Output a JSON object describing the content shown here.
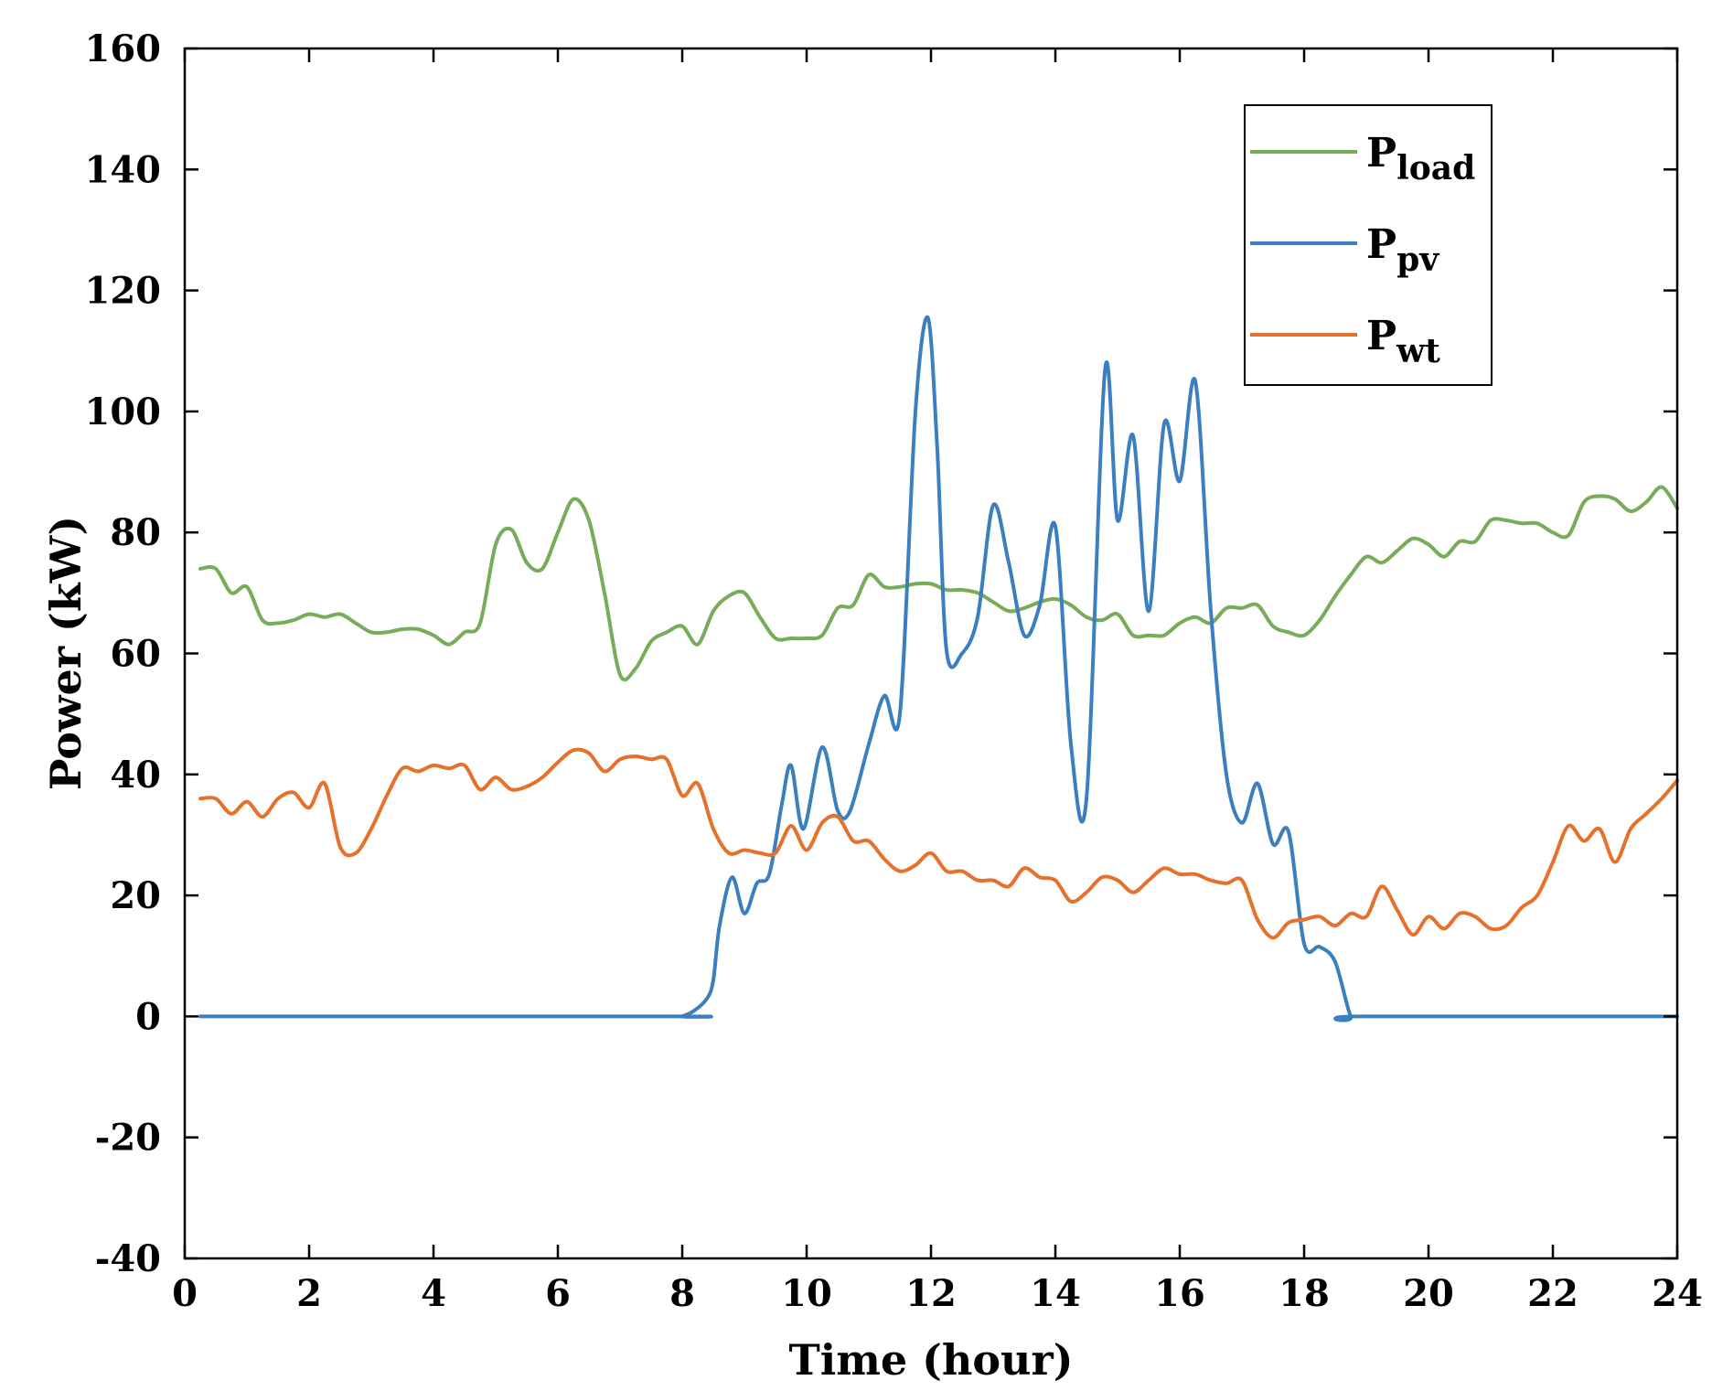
{
  "chart_data": {
    "type": "line",
    "title": "",
    "xlabel": "Time (hour)",
    "ylabel": "Power (kW)",
    "xlim": [
      0,
      24
    ],
    "ylim": [
      -40,
      160
    ],
    "x_ticks": [
      0,
      2,
      4,
      6,
      8,
      10,
      12,
      14,
      16,
      18,
      20,
      22,
      24
    ],
    "y_ticks": [
      -40,
      -20,
      0,
      20,
      40,
      60,
      80,
      100,
      120,
      140,
      160
    ],
    "x_tick_labels": [
      "0",
      "2",
      "4",
      "6",
      "8",
      "10",
      "12",
      "14",
      "16",
      "18",
      "20",
      "22",
      "24"
    ],
    "y_tick_labels": [
      "-40",
      "-20",
      "0",
      "20",
      "40",
      "60",
      "80",
      "100",
      "120",
      "140",
      "160"
    ],
    "grid": false,
    "legend_position": "top-right",
    "series": [
      {
        "name": "P_load",
        "label_main": "P",
        "label_sub": "load",
        "color": "#77ac59",
        "x": [
          0.25,
          0.5,
          0.75,
          1.0,
          1.25,
          1.5,
          1.75,
          2.0,
          2.25,
          2.5,
          2.75,
          3.0,
          3.25,
          3.5,
          3.75,
          4.0,
          4.25,
          4.5,
          4.75,
          5.0,
          5.25,
          5.5,
          5.75,
          6.0,
          6.25,
          6.5,
          6.75,
          7.0,
          7.25,
          7.5,
          7.75,
          8.0,
          8.25,
          8.5,
          8.75,
          9.0,
          9.25,
          9.5,
          9.75,
          10.0,
          10.25,
          10.5,
          10.75,
          11.0,
          11.25,
          11.5,
          11.75,
          12.0,
          12.25,
          12.5,
          12.75,
          13.0,
          13.25,
          13.5,
          13.75,
          14.0,
          14.25,
          14.5,
          14.75,
          15.0,
          15.25,
          15.5,
          15.75,
          16.0,
          16.25,
          16.5,
          16.75,
          17.0,
          17.25,
          17.5,
          17.75,
          18.0,
          18.25,
          18.5,
          18.75,
          19.0,
          19.25,
          19.5,
          19.75,
          20.0,
          20.25,
          20.5,
          20.75,
          21.0,
          21.25,
          21.5,
          21.75,
          22.0,
          22.25,
          22.5,
          22.75,
          23.0,
          23.25,
          23.5,
          23.75,
          24.0
        ],
        "values": [
          74,
          74,
          70,
          71,
          65.5,
          65,
          65.5,
          66.5,
          66,
          66.5,
          65,
          63.5,
          63.5,
          64,
          64,
          63,
          61.5,
          63.5,
          65,
          78,
          80.5,
          75,
          74,
          80,
          85.5,
          82,
          70,
          56.5,
          57.5,
          62,
          63.5,
          64.5,
          61.5,
          67,
          69.5,
          70,
          66,
          62.5,
          62.5,
          62.5,
          63,
          67.5,
          68,
          73,
          71,
          71,
          71.5,
          71.5,
          70.5,
          70.5,
          70,
          68.5,
          67,
          67.5,
          68.5,
          69,
          68,
          66,
          65.5,
          66.5,
          63,
          63,
          63,
          65,
          66,
          65,
          67.5,
          67.5,
          68,
          64.5,
          63.5,
          63,
          65.5,
          69.5,
          73,
          76,
          75,
          77,
          79,
          78,
          76,
          78.5,
          78.5,
          82,
          82,
          81.5,
          81.5,
          80,
          79.5,
          85,
          86,
          85.5,
          83.5,
          85,
          87.5,
          84
        ]
      },
      {
        "name": "P_pv",
        "label_main": "P",
        "label_sub": "pv",
        "color": "#3b7fc0",
        "x": [
          0.25,
          7.9,
          8.0,
          8.2,
          8.4,
          8.5,
          8.6,
          8.8,
          9.0,
          9.2,
          9.4,
          9.6,
          9.75,
          9.95,
          10.25,
          10.5,
          10.7,
          11.0,
          11.25,
          11.5,
          11.75,
          11.95,
          12.1,
          12.25,
          12.5,
          12.75,
          13.0,
          13.25,
          13.5,
          13.75,
          14.0,
          14.25,
          14.5,
          14.8,
          15.0,
          15.25,
          15.5,
          15.75,
          16.0,
          16.25,
          16.5,
          16.75,
          17.0,
          17.25,
          17.5,
          17.75,
          18.0,
          18.25,
          18.5,
          18.75,
          18.9,
          24.0
        ],
        "values": [
          0,
          0,
          0,
          1,
          3,
          6,
          15,
          23,
          17,
          22,
          23.5,
          35,
          41.5,
          31,
          44.5,
          34,
          34,
          45,
          53,
          50,
          100,
          115.5,
          94,
          60.5,
          60,
          66,
          84.5,
          75,
          63,
          68,
          81,
          45,
          36,
          107,
          82,
          96,
          67,
          98,
          88.5,
          105,
          67,
          40,
          32,
          38.5,
          28.5,
          30.5,
          12,
          11.5,
          9,
          0,
          0,
          0
        ]
      },
      {
        "name": "P_wt",
        "label_main": "P",
        "label_sub": "wt",
        "color": "#e5712b",
        "x": [
          0.25,
          0.5,
          0.75,
          1.0,
          1.25,
          1.5,
          1.75,
          2.0,
          2.25,
          2.5,
          2.75,
          3.0,
          3.25,
          3.5,
          3.75,
          4.0,
          4.25,
          4.5,
          4.75,
          5.0,
          5.25,
          5.5,
          5.75,
          6.0,
          6.25,
          6.5,
          6.75,
          7.0,
          7.25,
          7.5,
          7.75,
          8.0,
          8.25,
          8.5,
          8.75,
          9.0,
          9.25,
          9.5,
          9.75,
          10.0,
          10.25,
          10.5,
          10.75,
          11.0,
          11.25,
          11.5,
          11.75,
          12.0,
          12.25,
          12.5,
          12.75,
          13.0,
          13.25,
          13.5,
          13.75,
          14.0,
          14.25,
          14.5,
          14.75,
          15.0,
          15.25,
          15.5,
          15.75,
          16.0,
          16.25,
          16.5,
          16.75,
          17.0,
          17.25,
          17.5,
          17.75,
          18.0,
          18.25,
          18.5,
          18.75,
          19.0,
          19.25,
          19.5,
          19.75,
          20.0,
          20.25,
          20.5,
          20.75,
          21.0,
          21.25,
          21.5,
          21.75,
          22.0,
          22.25,
          22.5,
          22.75,
          23.0,
          23.25,
          23.5,
          23.75,
          24.0
        ],
        "values": [
          36,
          36,
          33.5,
          35.5,
          33,
          36,
          37,
          34.5,
          38.5,
          28,
          27,
          31,
          36.5,
          41,
          40.5,
          41.5,
          41,
          41.5,
          37.5,
          39.5,
          37.5,
          38,
          39.5,
          42,
          44,
          43.5,
          40.5,
          42.5,
          43,
          42.5,
          42.5,
          36.5,
          38.5,
          31,
          27,
          27.5,
          27,
          27,
          31.5,
          27.5,
          32,
          33,
          29,
          29,
          26,
          24,
          25,
          27,
          24,
          24,
          22.5,
          22.5,
          21.5,
          24.5,
          23,
          22.5,
          19,
          20.5,
          23,
          22.5,
          20.5,
          22.5,
          24.5,
          23.5,
          23.5,
          22.5,
          22,
          22.5,
          16,
          13,
          15.5,
          16,
          16.5,
          15,
          17,
          16.5,
          21.5,
          17.5,
          13.5,
          16.5,
          14.5,
          17,
          16.5,
          14.5,
          15,
          18,
          20,
          25.5,
          31.5,
          29,
          31,
          25.5,
          31,
          33.5,
          36,
          39
        ]
      }
    ]
  }
}
